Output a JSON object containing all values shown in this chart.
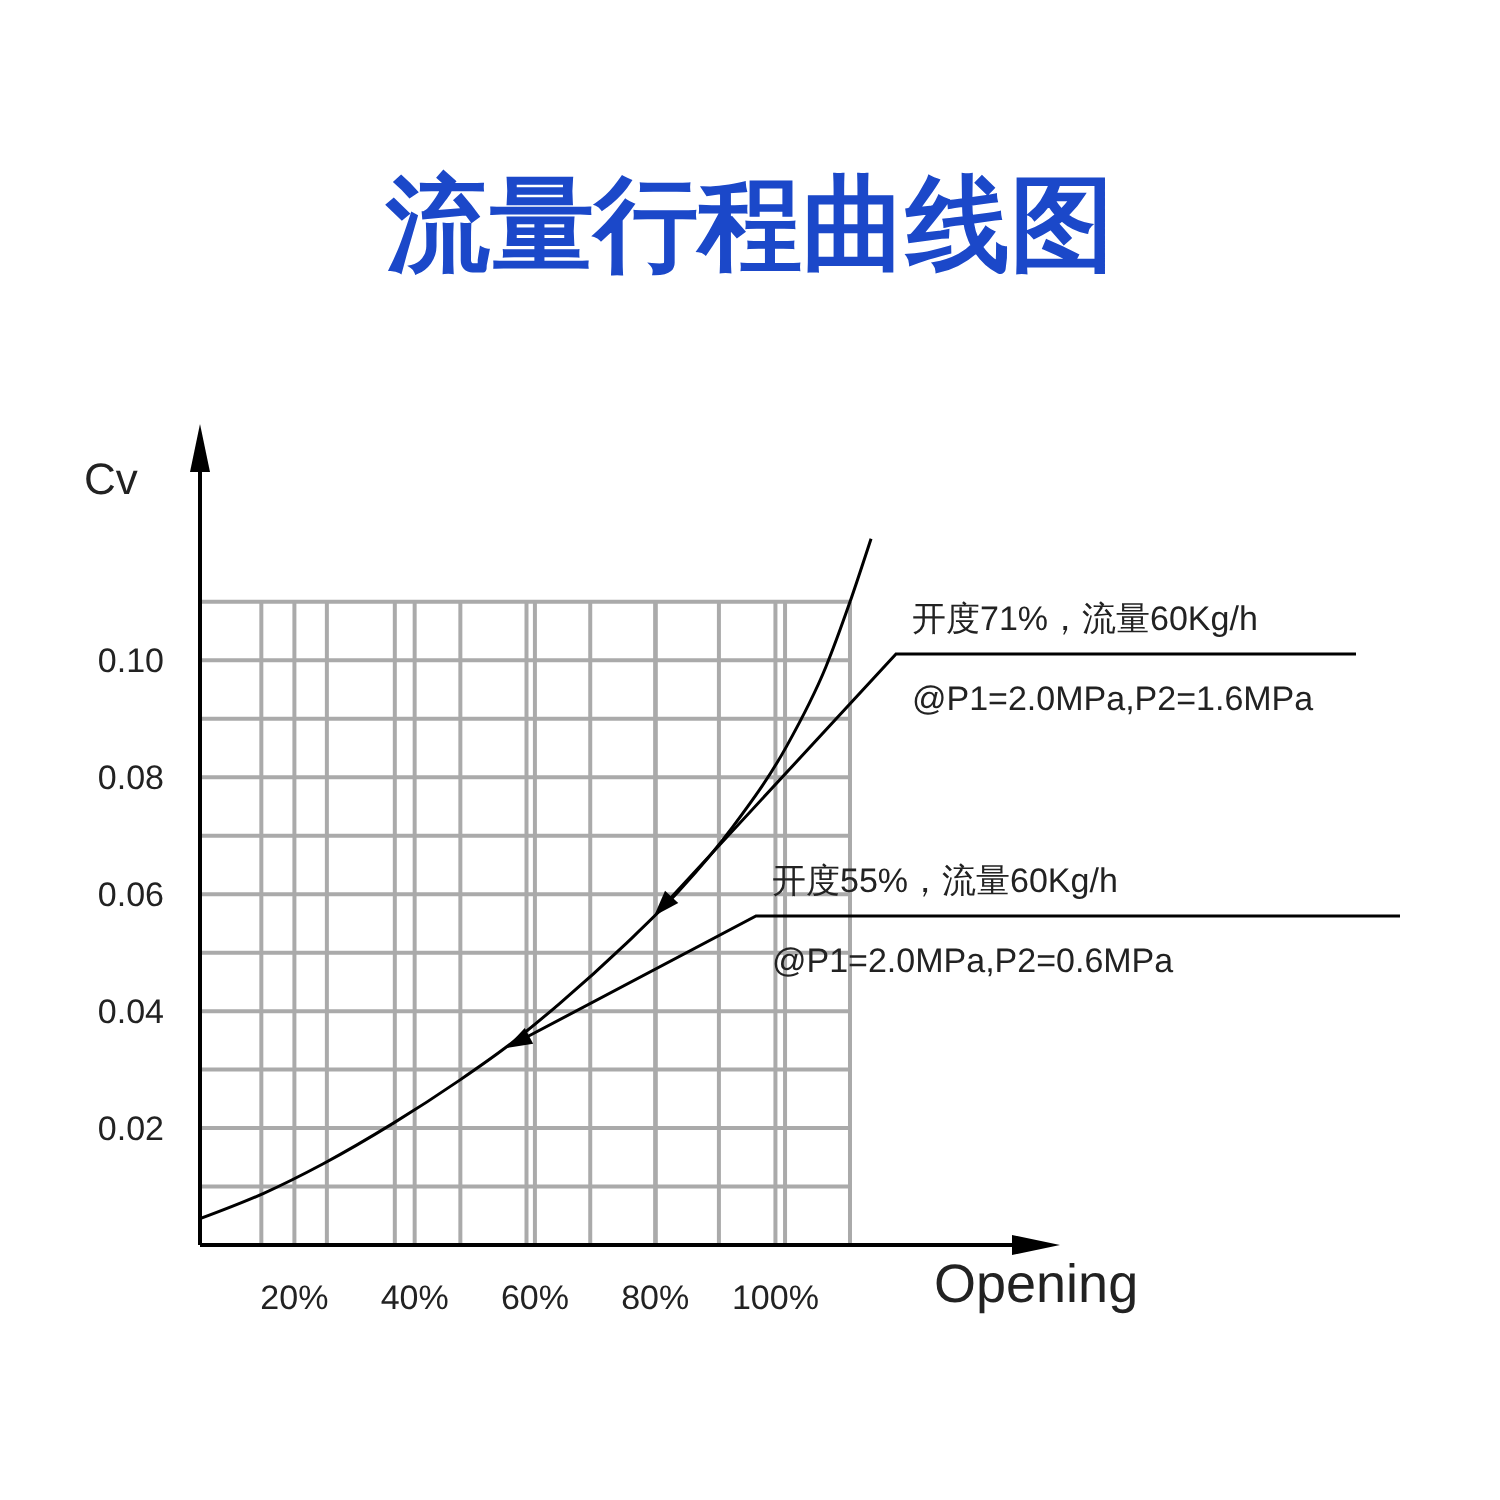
{
  "chart_data": {
    "type": "line",
    "title": "流量行程曲线图",
    "xlabel": "Opening",
    "ylabel": "Cv",
    "x": [
      4.3,
      14.8,
      24.8,
      36.4,
      47.5,
      55.3,
      64.1,
      75.2,
      84.1,
      92.9,
      101.8,
      108.4,
      112.3,
      115.9
    ],
    "values": [
      0.0045,
      0.0088,
      0.0139,
      0.0208,
      0.0282,
      0.0339,
      0.0413,
      0.0516,
      0.0607,
      0.0715,
      0.0852,
      0.0989,
      0.1097,
      0.1208
    ],
    "color": "#000000",
    "xlim": [
      4.3,
      144
    ],
    "ylim": [
      0,
      0.137
    ],
    "xticks": [
      {
        "value": 14.5,
        "label": null
      },
      {
        "value": 20,
        "label": "20%"
      },
      {
        "value": 25.4,
        "label": null
      },
      {
        "value": 36.7,
        "label": null
      },
      {
        "value": 40,
        "label": "40%"
      },
      {
        "value": 47.6,
        "label": null
      },
      {
        "value": 58.6,
        "label": null
      },
      {
        "value": 60,
        "label": "60%"
      },
      {
        "value": 69.2,
        "label": null
      },
      {
        "value": 80,
        "label": "80%"
      },
      {
        "value": 80.1,
        "label": null
      },
      {
        "value": 90.6,
        "label": null
      },
      {
        "value": 100,
        "label": "100%"
      },
      {
        "value": 101.6,
        "label": null
      },
      {
        "value": 112.4,
        "label": null
      }
    ],
    "yticks": [
      {
        "value": 0.01,
        "label": null
      },
      0.02,
      {
        "value": 0.03,
        "label": null
      },
      0.04,
      {
        "value": 0.05,
        "label": null
      },
      0.06,
      {
        "value": 0.07,
        "label": null
      },
      0.08,
      {
        "value": 0.09,
        "label": null
      },
      {
        "value": 0.1,
        "label": "0.10"
      },
      {
        "value": 0.11,
        "label": null
      }
    ],
    "grid": true,
    "annotations": [
      "开度71%，流量60Kg/h",
      "@P1=2.0MPa,P2=1.6MPa",
      "开度55%，流量60Kg/h",
      "@P1=2.0MPa,P2=0.6MPa"
    ]
  }
}
